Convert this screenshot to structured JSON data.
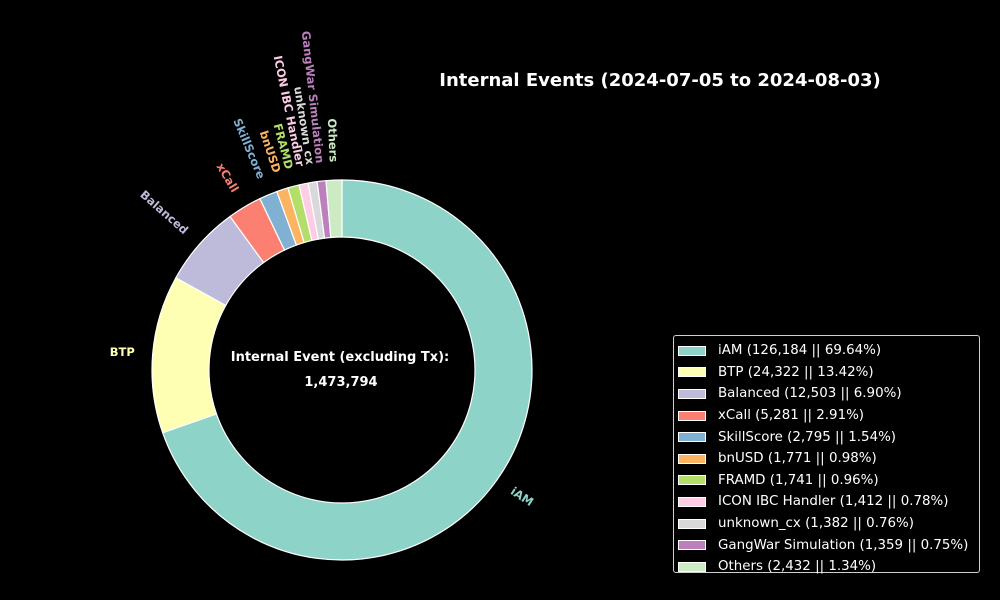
{
  "chart_data": {
    "type": "pie",
    "style": "donut",
    "title": "Internal Events (2024-07-05 to 2024-08-03)",
    "center_text": "Internal Event (excluding Tx):",
    "center_value": "1,473,794",
    "slices": [
      {
        "label": "iAM",
        "value": 126184,
        "percent": 69.64,
        "color": "#8dd3c7",
        "legend": "iAM  (126,184 || 69.64%)"
      },
      {
        "label": "BTP",
        "value": 24322,
        "percent": 13.42,
        "color": "#ffffb3",
        "legend": "BTP (24,322 || 13.42%)"
      },
      {
        "label": "Balanced",
        "value": 12503,
        "percent": 6.9,
        "color": "#bebada",
        "legend": "Balanced (12,503 || 6.90%)"
      },
      {
        "label": "xCall",
        "value": 5281,
        "percent": 2.91,
        "color": "#fb8072",
        "legend": "xCall (5,281 || 2.91%)"
      },
      {
        "label": "SkillScore",
        "value": 2795,
        "percent": 1.54,
        "color": "#80b1d3",
        "legend": "SkillScore (2,795 || 1.54%)"
      },
      {
        "label": "bnUSD",
        "value": 1771,
        "percent": 0.98,
        "color": "#fdb462",
        "legend": "bnUSD (1,771 || 0.98%)"
      },
      {
        "label": "FRAMD",
        "value": 1741,
        "percent": 0.96,
        "color": "#b3de69",
        "legend": "FRAMD (1,741 || 0.96%)"
      },
      {
        "label": "ICON IBC Handler",
        "value": 1412,
        "percent": 0.78,
        "color": "#fccde5",
        "legend": "ICON IBC Handler (1,412 || 0.78%)"
      },
      {
        "label": "unknown_cx",
        "value": 1382,
        "percent": 0.76,
        "color": "#d9d9d9",
        "legend": "unknown_cx (1,382 || 0.76%)"
      },
      {
        "label": "GangWar Simulation",
        "value": 1359,
        "percent": 0.75,
        "color": "#bc80bd",
        "legend": "GangWar Simulation (1,359 || 0.75%)"
      },
      {
        "label": "Others",
        "value": 2432,
        "percent": 1.34,
        "color": "#ccebc5",
        "legend": "Others (2,432 || 1.34%)"
      }
    ],
    "legend_position": "lower-right",
    "start_angle": "top, clockwise"
  }
}
